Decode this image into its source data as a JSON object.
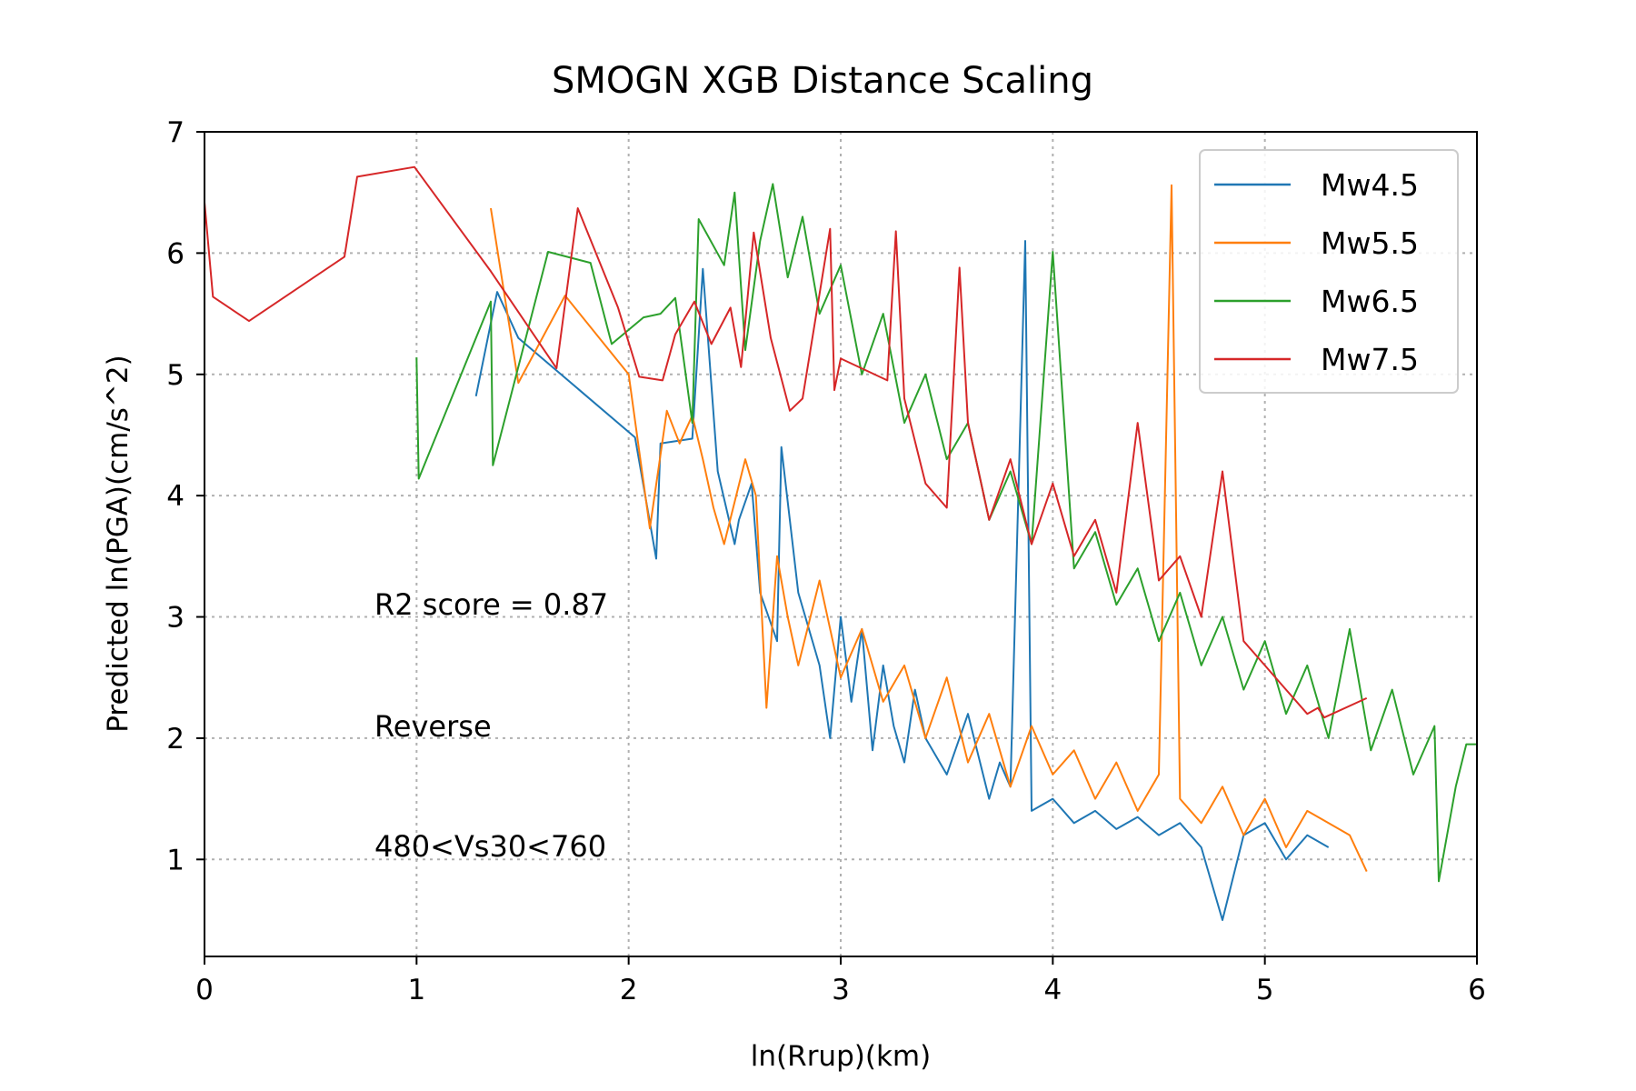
{
  "chart_data": {
    "type": "line",
    "title": "SMOGN XGB Distance Scaling",
    "xlabel": "ln(Rrup)(km)",
    "ylabel": "Predicted ln(PGA)(cm/s^2)",
    "xlim": [
      0,
      6
    ],
    "ylim": [
      0.2,
      7
    ],
    "xticks": [
      0,
      1,
      2,
      3,
      4,
      5,
      6
    ],
    "yticks": [
      1,
      2,
      3,
      4,
      5,
      6,
      7
    ],
    "grid": true,
    "legend_position": "top-right",
    "annotations": [
      "R2 score = 0.87",
      "Reverse",
      "480<Vs30<760"
    ],
    "series": [
      {
        "name": "Mw4.5",
        "color": "#1f77b4",
        "x": [
          1.28,
          1.38,
          1.48,
          2.03,
          2.13,
          2.15,
          2.3,
          2.35,
          2.42,
          2.5,
          2.52,
          2.58,
          2.62,
          2.7,
          2.72,
          2.8,
          2.85,
          2.9,
          2.95,
          3.0,
          3.05,
          3.1,
          3.15,
          3.2,
          3.25,
          3.3,
          3.35,
          3.4,
          3.5,
          3.6,
          3.7,
          3.75,
          3.8,
          3.87,
          3.9,
          4.0,
          4.1,
          4.2,
          4.3,
          4.4,
          4.5,
          4.6,
          4.7,
          4.8,
          4.9,
          5.0,
          5.1,
          5.2,
          5.3
        ],
        "y": [
          4.82,
          5.68,
          5.3,
          4.48,
          3.48,
          4.43,
          4.47,
          5.87,
          4.2,
          3.6,
          3.8,
          4.1,
          3.2,
          2.8,
          4.4,
          3.2,
          2.9,
          2.6,
          2.0,
          3.0,
          2.3,
          2.9,
          1.9,
          2.6,
          2.1,
          1.8,
          2.4,
          2.0,
          1.7,
          2.2,
          1.5,
          1.8,
          1.6,
          6.1,
          1.4,
          1.5,
          1.3,
          1.4,
          1.25,
          1.35,
          1.2,
          1.3,
          1.1,
          0.5,
          1.2,
          1.3,
          1.0,
          1.2,
          1.1
        ]
      },
      {
        "name": "Mw5.5",
        "color": "#ff7f0e",
        "x": [
          1.35,
          1.48,
          1.7,
          2.0,
          2.1,
          2.18,
          2.24,
          2.3,
          2.35,
          2.4,
          2.45,
          2.55,
          2.6,
          2.65,
          2.7,
          2.75,
          2.8,
          2.9,
          3.0,
          3.1,
          3.2,
          3.3,
          3.4,
          3.5,
          3.6,
          3.7,
          3.8,
          3.9,
          4.0,
          4.1,
          4.2,
          4.3,
          4.4,
          4.5,
          4.56,
          4.6,
          4.7,
          4.8,
          4.9,
          5.0,
          5.1,
          5.2,
          5.3,
          5.4,
          5.48
        ],
        "y": [
          6.37,
          4.93,
          5.65,
          5.0,
          3.73,
          4.7,
          4.43,
          4.66,
          4.3,
          3.9,
          3.6,
          4.3,
          4.0,
          2.25,
          3.5,
          3.0,
          2.6,
          3.3,
          2.5,
          2.9,
          2.3,
          2.6,
          2.0,
          2.5,
          1.8,
          2.2,
          1.6,
          2.1,
          1.7,
          1.9,
          1.5,
          1.8,
          1.4,
          1.7,
          6.56,
          1.5,
          1.3,
          1.6,
          1.2,
          1.5,
          1.1,
          1.4,
          1.3,
          1.2,
          0.9
        ]
      },
      {
        "name": "Mw6.5",
        "color": "#2ca02c",
        "x": [
          1.0,
          1.01,
          1.35,
          1.36,
          1.62,
          1.82,
          1.92,
          2.07,
          2.15,
          2.22,
          2.3,
          2.33,
          2.45,
          2.5,
          2.55,
          2.62,
          2.68,
          2.75,
          2.82,
          2.9,
          3.0,
          3.1,
          3.2,
          3.3,
          3.4,
          3.5,
          3.6,
          3.7,
          3.8,
          3.9,
          4.0,
          4.1,
          4.2,
          4.3,
          4.4,
          4.5,
          4.6,
          4.7,
          4.8,
          4.9,
          5.0,
          5.1,
          5.2,
          5.3,
          5.4,
          5.5,
          5.6,
          5.7,
          5.8,
          5.82,
          5.9,
          5.95,
          6.0
        ],
        "y": [
          5.14,
          4.14,
          5.6,
          4.25,
          6.01,
          5.92,
          5.25,
          5.47,
          5.5,
          5.63,
          4.6,
          6.28,
          5.9,
          6.5,
          5.2,
          6.1,
          6.57,
          5.8,
          6.3,
          5.5,
          5.9,
          5.0,
          5.5,
          4.6,
          5.0,
          4.3,
          4.6,
          3.8,
          4.2,
          3.6,
          6.01,
          3.4,
          3.7,
          3.1,
          3.4,
          2.8,
          3.2,
          2.6,
          3.0,
          2.4,
          2.8,
          2.2,
          2.6,
          2.0,
          2.9,
          1.9,
          2.4,
          1.7,
          2.1,
          0.82,
          1.6,
          1.95,
          1.95
        ]
      },
      {
        "name": "Mw7.5",
        "color": "#d62728",
        "x": [
          0.0,
          0.04,
          0.21,
          0.66,
          0.72,
          0.99,
          1.35,
          1.66,
          1.76,
          1.95,
          2.05,
          2.16,
          2.22,
          2.31,
          2.39,
          2.48,
          2.53,
          2.59,
          2.67,
          2.76,
          2.82,
          2.95,
          2.97,
          3.0,
          3.22,
          3.26,
          3.3,
          3.4,
          3.5,
          3.56,
          3.6,
          3.7,
          3.8,
          3.9,
          4.0,
          4.1,
          4.2,
          4.3,
          4.4,
          4.5,
          4.6,
          4.7,
          4.8,
          4.9,
          5.0,
          5.1,
          5.2,
          5.25,
          5.28,
          5.48
        ],
        "y": [
          6.42,
          5.64,
          5.44,
          5.97,
          6.63,
          6.71,
          5.85,
          5.05,
          6.37,
          5.55,
          4.98,
          4.95,
          5.33,
          5.6,
          5.25,
          5.55,
          5.06,
          6.17,
          5.3,
          4.7,
          4.8,
          6.2,
          4.87,
          5.13,
          4.95,
          6.18,
          4.8,
          4.1,
          3.9,
          5.88,
          4.6,
          3.8,
          4.3,
          3.6,
          4.1,
          3.5,
          3.8,
          3.2,
          4.6,
          3.3,
          3.5,
          3.0,
          4.2,
          2.8,
          2.6,
          2.4,
          2.2,
          2.25,
          2.17,
          2.33
        ]
      }
    ]
  }
}
